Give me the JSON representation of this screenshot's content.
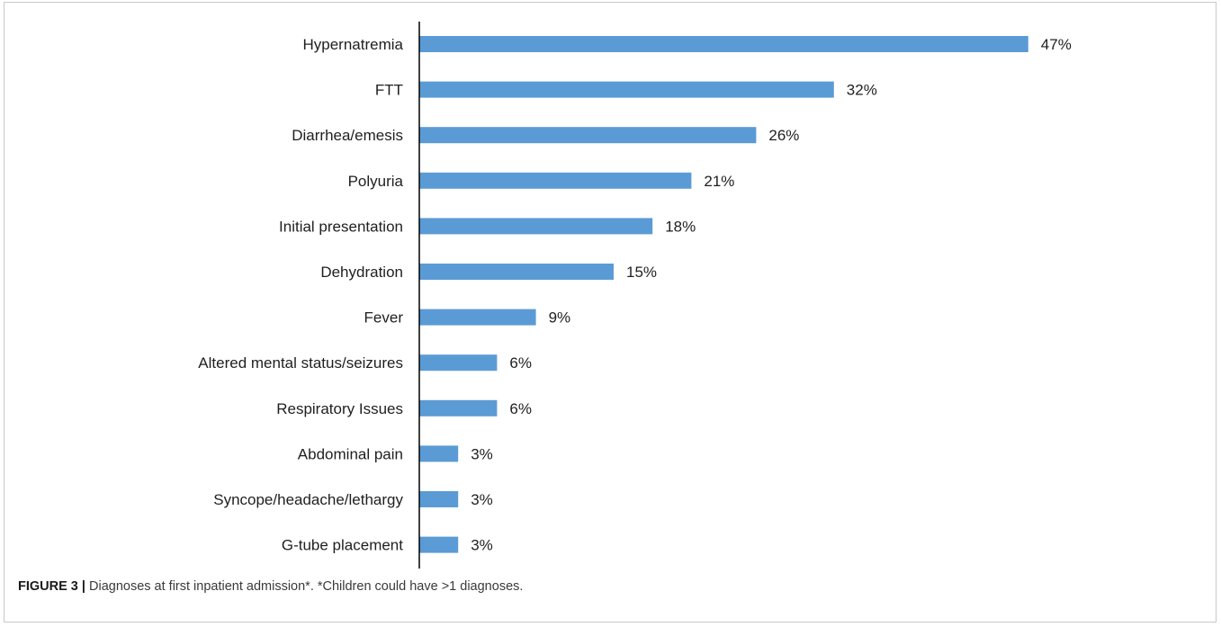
{
  "figure": {
    "label": "FIGURE 3 |",
    "caption": " Diagnoses at first inpatient admission*. *Children could have >1 diagnoses."
  },
  "colors": {
    "bar": "#5b9bd5",
    "axis": "#000000",
    "text": "#1f1f1f"
  },
  "chart_data": {
    "type": "bar",
    "orientation": "horizontal",
    "categories": [
      "Hypernatremia",
      "FTT",
      "Diarrhea/emesis",
      "Polyuria",
      "Initial presentation",
      "Dehydration",
      "Fever",
      "Altered mental status/seizures",
      "Respiratory Issues",
      "Abdominal pain",
      "Syncope/headache/lethargy",
      "G-tube placement"
    ],
    "values": [
      47,
      32,
      26,
      21,
      18,
      15,
      9,
      6,
      6,
      3,
      3,
      3
    ],
    "value_labels": [
      "47%",
      "32%",
      "26%",
      "21%",
      "18%",
      "15%",
      "9%",
      "6%",
      "6%",
      "3%",
      "3%",
      "3%"
    ],
    "xlim": [
      0,
      50
    ],
    "grid": false,
    "legend": "none"
  }
}
